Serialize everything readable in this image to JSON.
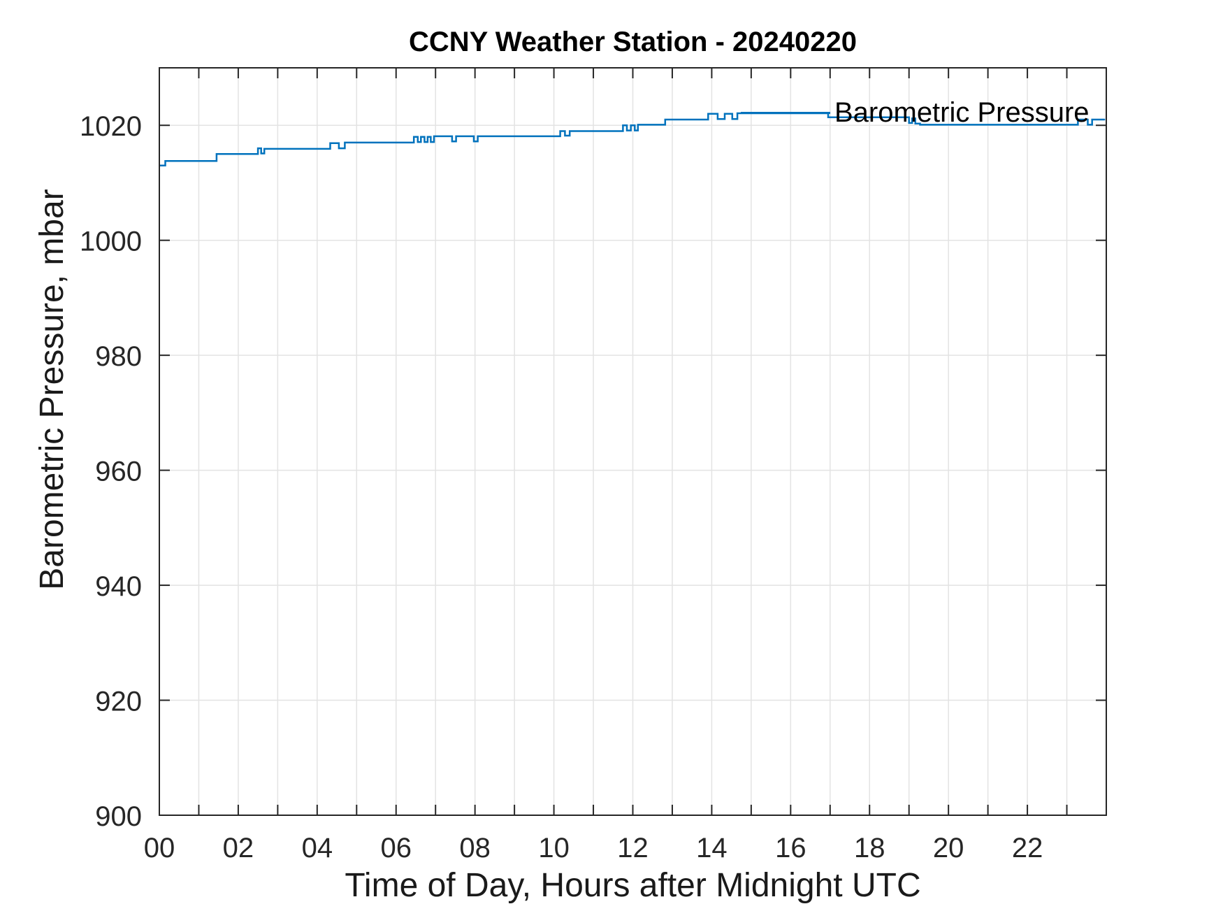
{
  "chart_data": {
    "type": "line",
    "title": "CCNY Weather Station - 20240220",
    "xlabel": "Time of Day, Hours after Midnight UTC",
    "ylabel": "Barometric Pressure, mbar",
    "xlim": [
      0,
      24
    ],
    "ylim": [
      900,
      1030
    ],
    "x_ticks": {
      "positions": [
        0,
        2,
        4,
        6,
        8,
        10,
        12,
        14,
        16,
        18,
        20,
        22
      ],
      "labels": [
        "00",
        "02",
        "04",
        "06",
        "08",
        "10",
        "12",
        "14",
        "16",
        "18",
        "20",
        "22"
      ],
      "minor_step": 1
    },
    "y_ticks": {
      "positions": [
        900,
        920,
        940,
        960,
        980,
        1000,
        1020
      ],
      "labels": [
        "900",
        "920",
        "940",
        "960",
        "980",
        "1000",
        "1020"
      ]
    },
    "grid": {
      "x_step": 1,
      "y_step": 20,
      "on": true
    },
    "legend": {
      "label": "Barometric Pressure",
      "position": "upper-right-inside",
      "box": false
    },
    "colors": {
      "line": "#0072BD",
      "grid": "#e3e3e3",
      "axis": "#262626",
      "tick_text": "#262626",
      "background": "#ffffff"
    },
    "series": [
      {
        "name": "Barometric Pressure",
        "units": "mbar",
        "color": "#0072BD",
        "points": [
          [
            0.0,
            1013.0
          ],
          [
            0.15,
            1013.0
          ],
          [
            0.15,
            1013.8
          ],
          [
            1.45,
            1013.8
          ],
          [
            1.45,
            1015.0
          ],
          [
            2.5,
            1015.0
          ],
          [
            2.5,
            1016.0
          ],
          [
            2.58,
            1016.0
          ],
          [
            2.58,
            1015.1
          ],
          [
            2.66,
            1015.1
          ],
          [
            2.66,
            1015.9
          ],
          [
            4.33,
            1015.9
          ],
          [
            4.33,
            1016.9
          ],
          [
            4.55,
            1016.9
          ],
          [
            4.55,
            1016.0
          ],
          [
            4.7,
            1016.0
          ],
          [
            4.7,
            1017.0
          ],
          [
            6.45,
            1017.0
          ],
          [
            6.45,
            1018.0
          ],
          [
            6.55,
            1018.0
          ],
          [
            6.55,
            1017.1
          ],
          [
            6.63,
            1017.1
          ],
          [
            6.63,
            1018.0
          ],
          [
            6.72,
            1018.0
          ],
          [
            6.72,
            1017.1
          ],
          [
            6.8,
            1017.1
          ],
          [
            6.8,
            1018.0
          ],
          [
            6.88,
            1018.0
          ],
          [
            6.88,
            1017.1
          ],
          [
            6.96,
            1017.1
          ],
          [
            6.96,
            1018.1
          ],
          [
            7.42,
            1018.1
          ],
          [
            7.42,
            1017.2
          ],
          [
            7.52,
            1017.2
          ],
          [
            7.52,
            1018.1
          ],
          [
            7.97,
            1018.1
          ],
          [
            7.97,
            1017.2
          ],
          [
            8.07,
            1017.2
          ],
          [
            8.07,
            1018.1
          ],
          [
            10.16,
            1018.1
          ],
          [
            10.16,
            1019.0
          ],
          [
            10.28,
            1019.0
          ],
          [
            10.28,
            1018.2
          ],
          [
            10.4,
            1018.2
          ],
          [
            10.4,
            1019.0
          ],
          [
            11.75,
            1019.0
          ],
          [
            11.75,
            1020.0
          ],
          [
            11.85,
            1020.0
          ],
          [
            11.85,
            1019.1
          ],
          [
            11.95,
            1019.1
          ],
          [
            11.95,
            1020.0
          ],
          [
            12.05,
            1020.0
          ],
          [
            12.05,
            1019.1
          ],
          [
            12.13,
            1019.1
          ],
          [
            12.13,
            1020.1
          ],
          [
            12.82,
            1020.1
          ],
          [
            12.82,
            1021.0
          ],
          [
            13.91,
            1021.0
          ],
          [
            13.91,
            1022.0
          ],
          [
            14.15,
            1022.0
          ],
          [
            14.15,
            1021.1
          ],
          [
            14.33,
            1021.1
          ],
          [
            14.33,
            1022.0
          ],
          [
            14.52,
            1022.0
          ],
          [
            14.52,
            1021.1
          ],
          [
            14.65,
            1021.1
          ],
          [
            14.65,
            1022.1
          ],
          [
            16.95,
            1022.1
          ],
          [
            16.95,
            1021.4
          ],
          [
            19.0,
            1021.4
          ],
          [
            19.0,
            1020.4
          ],
          [
            19.08,
            1020.4
          ],
          [
            19.08,
            1021.2
          ],
          [
            19.16,
            1021.2
          ],
          [
            19.16,
            1020.3
          ],
          [
            19.28,
            1020.3
          ],
          [
            19.28,
            1020.1
          ],
          [
            23.28,
            1020.1
          ],
          [
            23.28,
            1021.0
          ],
          [
            23.53,
            1021.0
          ],
          [
            23.53,
            1020.1
          ],
          [
            23.64,
            1020.1
          ],
          [
            23.64,
            1021.0
          ],
          [
            23.97,
            1021.0
          ]
        ]
      }
    ]
  }
}
